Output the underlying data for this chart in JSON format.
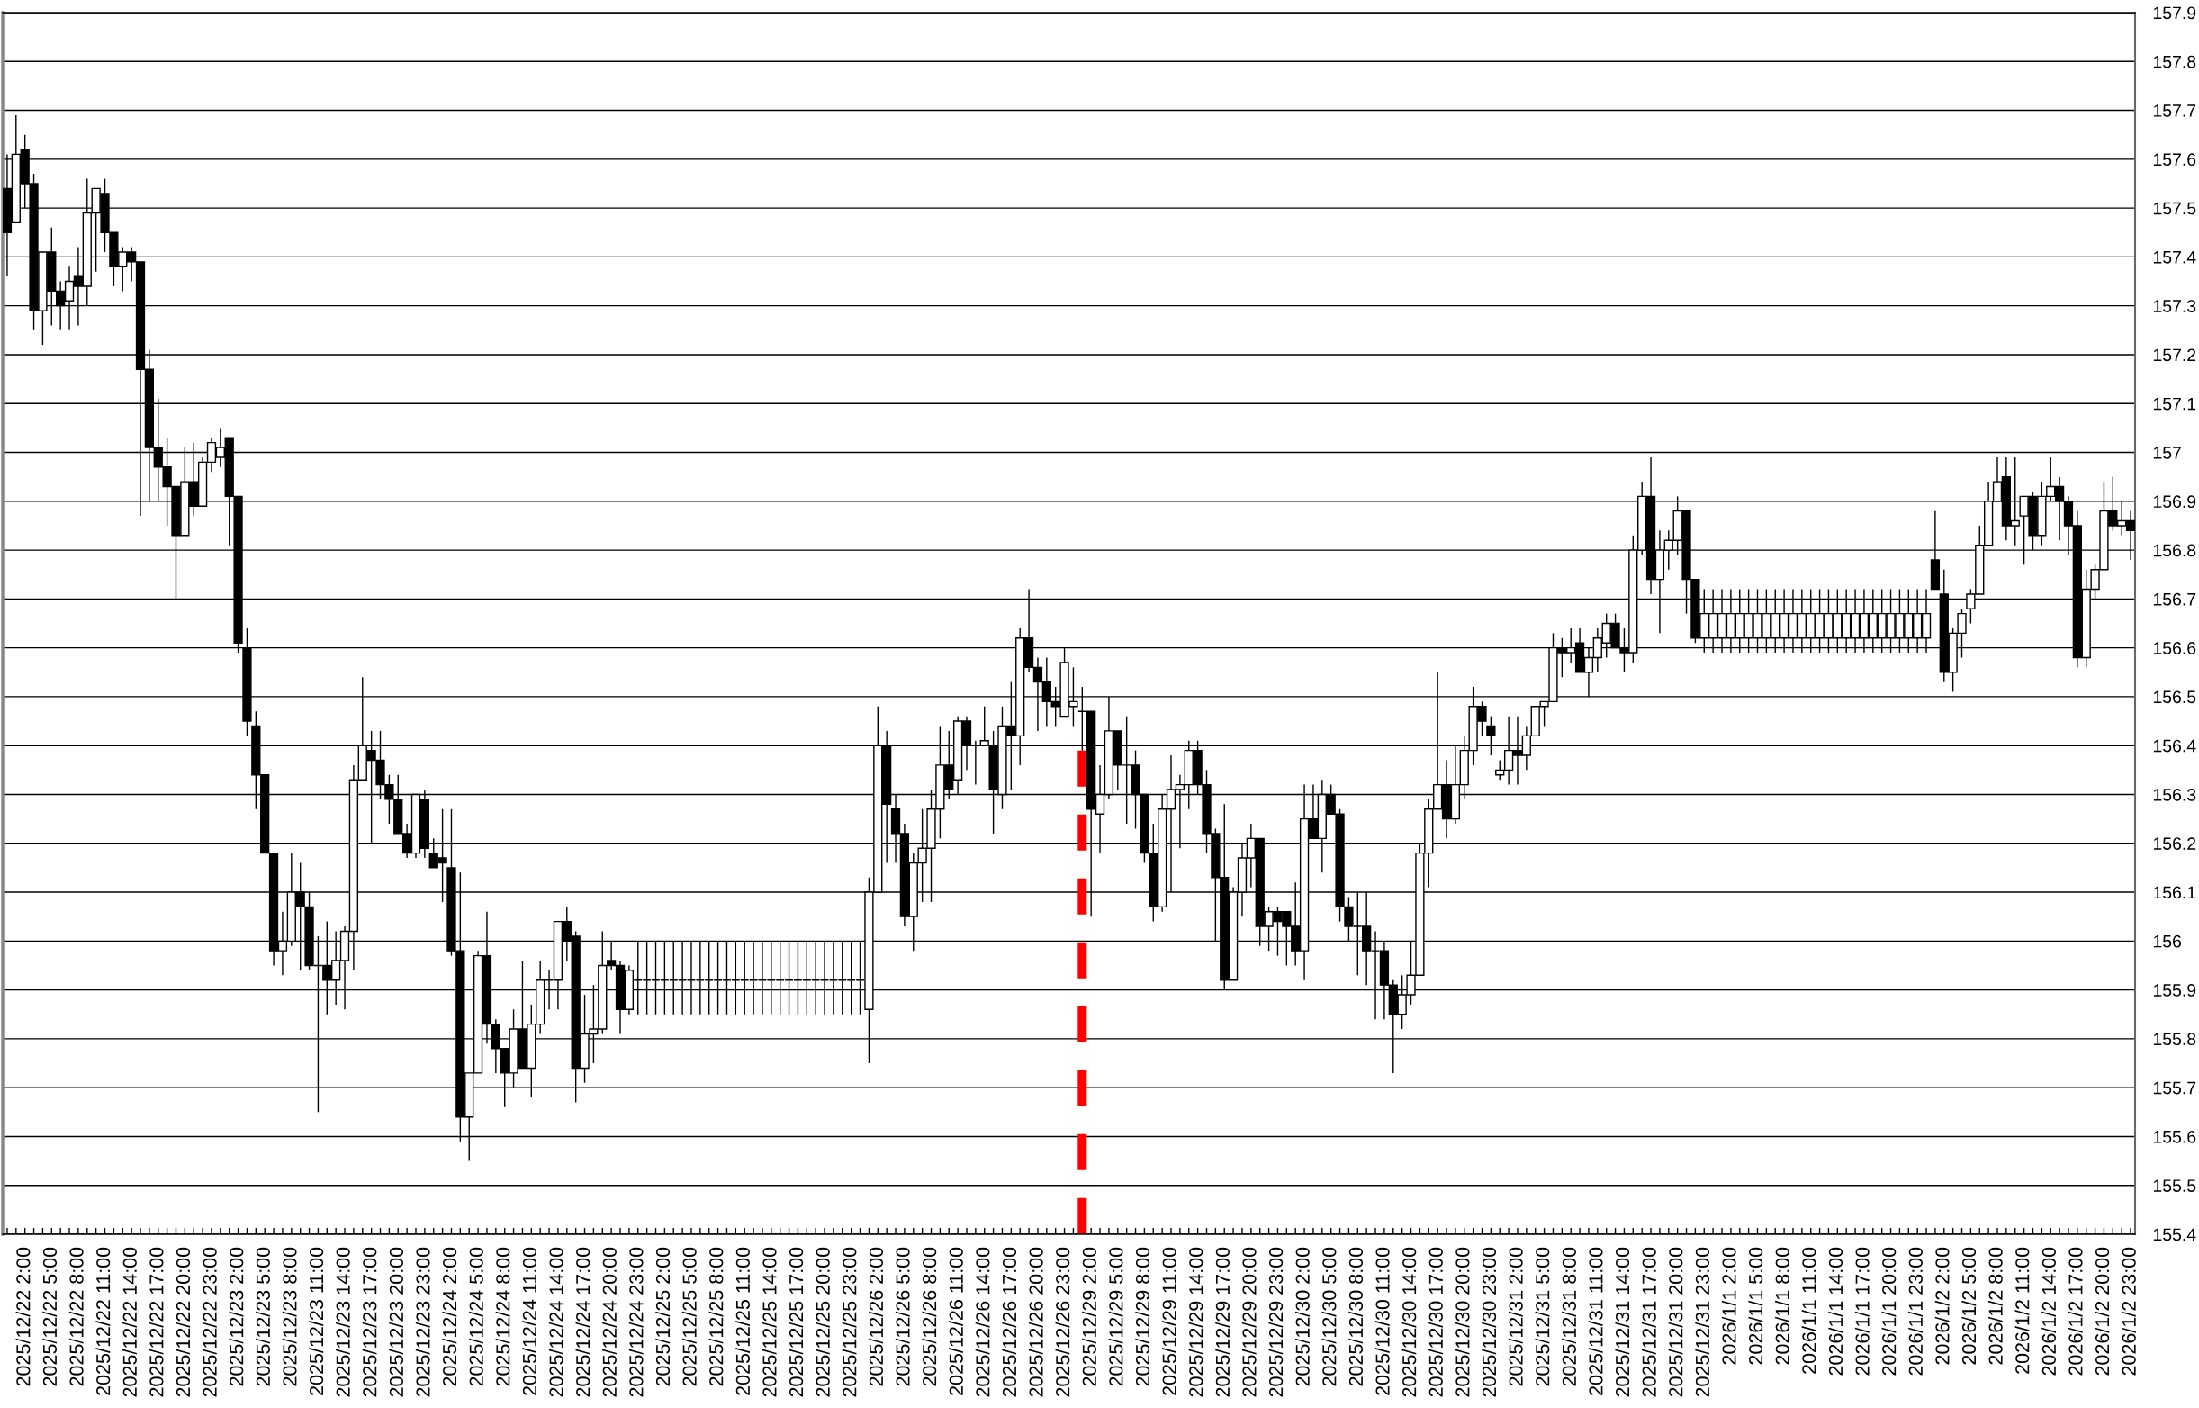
{
  "chart_data": {
    "type": "candlestick",
    "categories": [
      null,
      null,
      "2025/12/22 2:00",
      null,
      null,
      "2025/12/22 5:00",
      null,
      null,
      "2025/12/22 8:00",
      null,
      null,
      "2025/12/22 11:00",
      null,
      null,
      "2025/12/22 14:00",
      null,
      null,
      "2025/12/22 17:00",
      null,
      null,
      "2025/12/22 20:00",
      null,
      null,
      "2025/12/22 23:00",
      null,
      null,
      "2025/12/23 2:00",
      null,
      null,
      "2025/12/23 5:00",
      null,
      null,
      "2025/12/23 8:00",
      null,
      null,
      "2025/12/23 11:00",
      null,
      null,
      "2025/12/23 14:00",
      null,
      null,
      "2025/12/23 17:00",
      null,
      null,
      "2025/12/23 20:00",
      null,
      null,
      "2025/12/23 23:00",
      null,
      null,
      "2025/12/24 2:00",
      null,
      null,
      "2025/12/24 5:00",
      null,
      null,
      "2025/12/24 8:00",
      null,
      null,
      "2025/12/24 11:00",
      null,
      null,
      "2025/12/24 14:00",
      null,
      null,
      "2025/12/24 17:00",
      null,
      null,
      "2025/12/24 20:00",
      null,
      null,
      "2025/12/24 23:00",
      null,
      null,
      "2025/12/25 2:00",
      null,
      null,
      "2025/12/25 5:00",
      null,
      null,
      "2025/12/25 8:00",
      null,
      null,
      "2025/12/25 11:00",
      null,
      null,
      "2025/12/25 14:00",
      null,
      null,
      "2025/12/25 17:00",
      null,
      null,
      "2025/12/25 20:00",
      null,
      null,
      "2025/12/25 23:00",
      null,
      null,
      "2025/12/26 2:00",
      null,
      null,
      "2025/12/26 5:00",
      null,
      null,
      "2025/12/26 8:00",
      null,
      null,
      "2025/12/26 11:00",
      null,
      null,
      "2025/12/26 14:00",
      null,
      null,
      "2025/12/26 17:00",
      null,
      null,
      "2025/12/26 20:00",
      null,
      null,
      "2025/12/26 23:00",
      null,
      null,
      "2025/12/29 2:00",
      null,
      null,
      "2025/12/29 5:00",
      null,
      null,
      "2025/12/29 8:00",
      null,
      null,
      "2025/12/29 11:00",
      null,
      null,
      "2025/12/29 14:00",
      null,
      null,
      "2025/12/29 17:00",
      null,
      null,
      "2025/12/29 20:00",
      null,
      null,
      "2025/12/29 23:00",
      null,
      null,
      "2025/12/30 2:00",
      null,
      null,
      "2025/12/30 5:00",
      null,
      null,
      "2025/12/30 8:00",
      null,
      null,
      "2025/12/30 11:00",
      null,
      null,
      "2025/12/30 14:00",
      null,
      null,
      "2025/12/30 17:00",
      null,
      null,
      "2025/12/30 20:00",
      null,
      null,
      "2025/12/30 23:00",
      null,
      null,
      "2025/12/31 2:00",
      null,
      null,
      "2025/12/31 5:00",
      null,
      null,
      "2025/12/31 8:00",
      null,
      null,
      "2025/12/31 11:00",
      null,
      null,
      "2025/12/31 14:00",
      null,
      null,
      "2025/12/31 17:00",
      null,
      null,
      "2025/12/31 20:00",
      null,
      null,
      "2025/12/31 23:00",
      null,
      null,
      "2026/1/1 2:00",
      null,
      null,
      "2026/1/1 5:00",
      null,
      null,
      "2026/1/1 8:00",
      null,
      null,
      "2026/1/1 11:00",
      null,
      null,
      "2026/1/1 14:00",
      null,
      null,
      "2026/1/1 17:00",
      null,
      null,
      "2026/1/1 20:00",
      null,
      null,
      "2026/1/1 23:00",
      null,
      null,
      "2026/1/2 2:00",
      null,
      null,
      "2026/1/2 5:00",
      null,
      null,
      "2026/1/2 8:00",
      null,
      null,
      "2026/1/2 11:00",
      null,
      null,
      "2026/1/2 14:00",
      null,
      null,
      "2026/1/2 17:00",
      null,
      null,
      "2026/1/2 20:00",
      null,
      null,
      "2026/1/2 23:00"
    ],
    "ohlc": [
      [
        157.54,
        157.61,
        157.36,
        157.45
      ],
      [
        157.47,
        157.69,
        157.47,
        157.61
      ],
      [
        157.62,
        157.65,
        157.5,
        157.55
      ],
      [
        157.55,
        157.57,
        157.25,
        157.29
      ],
      [
        157.29,
        157.41,
        157.22,
        157.41
      ],
      [
        157.41,
        157.46,
        157.26,
        157.33
      ],
      [
        157.33,
        157.35,
        157.25,
        157.3
      ],
      [
        157.31,
        157.38,
        157.25,
        157.35
      ],
      [
        157.36,
        157.42,
        157.26,
        157.34
      ],
      [
        157.34,
        157.56,
        157.3,
        157.49
      ],
      [
        157.49,
        157.54,
        157.37,
        157.54
      ],
      [
        157.53,
        157.56,
        157.41,
        157.45
      ],
      [
        157.45,
        157.45,
        157.34,
        157.38
      ],
      [
        157.38,
        157.42,
        157.33,
        157.41
      ],
      [
        157.41,
        157.42,
        157.35,
        157.39
      ],
      [
        157.39,
        157.39,
        156.87,
        157.17
      ],
      [
        157.17,
        157.21,
        156.9,
        157.01
      ],
      [
        157.01,
        157.11,
        156.9,
        156.97
      ],
      [
        156.97,
        157.03,
        156.85,
        156.93
      ],
      [
        156.93,
        156.93,
        156.7,
        156.83
      ],
      [
        156.83,
        157.01,
        156.83,
        156.94
      ],
      [
        156.94,
        157.02,
        156.87,
        156.89
      ],
      [
        156.89,
        156.99,
        156.89,
        156.98
      ],
      [
        156.98,
        157.03,
        156.96,
        157.02
      ],
      [
        156.99,
        157.05,
        156.97,
        157.01
      ],
      [
        157.03,
        157.03,
        156.81,
        156.91
      ],
      [
        156.91,
        156.91,
        156.59,
        156.61
      ],
      [
        156.6,
        156.64,
        156.42,
        156.45
      ],
      [
        156.44,
        156.47,
        156.27,
        156.34
      ],
      [
        156.34,
        156.34,
        156.18,
        156.18
      ],
      [
        156.18,
        156.18,
        155.95,
        155.98
      ],
      [
        155.98,
        156.06,
        155.93,
        156.0
      ],
      [
        156.0,
        156.18,
        155.99,
        156.1
      ],
      [
        156.1,
        156.16,
        155.94,
        156.07
      ],
      [
        156.07,
        156.1,
        155.94,
        155.95
      ],
      [
        155.95,
        156.01,
        155.65,
        155.95
      ],
      [
        155.95,
        156.04,
        155.85,
        155.92
      ],
      [
        155.92,
        156.02,
        155.87,
        155.96
      ],
      [
        155.96,
        156.03,
        155.86,
        156.02
      ],
      [
        156.02,
        156.36,
        155.94,
        156.33
      ],
      [
        156.33,
        156.54,
        156.33,
        156.4
      ],
      [
        156.39,
        156.43,
        156.2,
        156.37
      ],
      [
        156.37,
        156.43,
        156.29,
        156.32
      ],
      [
        156.32,
        156.34,
        156.24,
        156.29
      ],
      [
        156.29,
        156.34,
        156.22,
        156.22
      ],
      [
        156.22,
        156.24,
        156.17,
        156.18
      ],
      [
        156.18,
        156.3,
        156.17,
        156.3
      ],
      [
        156.29,
        156.31,
        156.17,
        156.19
      ],
      [
        156.18,
        156.21,
        156.15,
        156.15
      ],
      [
        156.17,
        156.27,
        156.08,
        156.16
      ],
      [
        156.15,
        156.27,
        155.97,
        155.98
      ],
      [
        155.98,
        156.14,
        155.59,
        155.64
      ],
      [
        155.64,
        155.73,
        155.55,
        155.73
      ],
      [
        155.73,
        155.98,
        155.73,
        155.97
      ],
      [
        155.97,
        156.06,
        155.79,
        155.83
      ],
      [
        155.83,
        155.84,
        155.73,
        155.78
      ],
      [
        155.78,
        155.78,
        155.66,
        155.73
      ],
      [
        155.73,
        155.86,
        155.7,
        155.82
      ],
      [
        155.82,
        155.96,
        155.74,
        155.74
      ],
      [
        155.74,
        155.87,
        155.68,
        155.83
      ],
      [
        155.83,
        155.96,
        155.81,
        155.92
      ],
      [
        155.92,
        155.94,
        155.86,
        155.92
      ],
      [
        155.92,
        156.04,
        155.86,
        156.04
      ],
      [
        156.04,
        156.07,
        155.96,
        156.0
      ],
      [
        156.01,
        156.02,
        155.67,
        155.74
      ],
      [
        155.74,
        155.89,
        155.71,
        155.81
      ],
      [
        155.81,
        155.91,
        155.75,
        155.82
      ],
      [
        155.82,
        156.02,
        155.81,
        155.95
      ],
      [
        155.96,
        156.0,
        155.94,
        155.95
      ],
      [
        155.95,
        155.96,
        155.81,
        155.86
      ],
      [
        155.86,
        155.95,
        155.85,
        155.94
      ],
      [
        155.92,
        156.0,
        155.85,
        155.92
      ],
      [
        155.92,
        156.0,
        155.85,
        155.92
      ],
      [
        155.92,
        156.0,
        155.85,
        155.92
      ],
      [
        155.92,
        156.0,
        155.85,
        155.92
      ],
      [
        155.92,
        156.0,
        155.85,
        155.92
      ],
      [
        155.92,
        156.0,
        155.85,
        155.92
      ],
      [
        155.92,
        156.0,
        155.85,
        155.92
      ],
      [
        155.92,
        156.0,
        155.85,
        155.92
      ],
      [
        155.92,
        156.0,
        155.85,
        155.92
      ],
      [
        155.92,
        156.0,
        155.85,
        155.92
      ],
      [
        155.92,
        156.0,
        155.85,
        155.92
      ],
      [
        155.92,
        156.0,
        155.85,
        155.92
      ],
      [
        155.92,
        156.0,
        155.85,
        155.92
      ],
      [
        155.92,
        156.0,
        155.85,
        155.92
      ],
      [
        155.92,
        156.0,
        155.85,
        155.92
      ],
      [
        155.92,
        156.0,
        155.85,
        155.92
      ],
      [
        155.92,
        156.0,
        155.85,
        155.92
      ],
      [
        155.92,
        156.0,
        155.85,
        155.92
      ],
      [
        155.92,
        156.0,
        155.85,
        155.92
      ],
      [
        155.92,
        156.0,
        155.85,
        155.92
      ],
      [
        155.92,
        156.0,
        155.85,
        155.92
      ],
      [
        155.92,
        156.0,
        155.85,
        155.92
      ],
      [
        155.92,
        156.0,
        155.85,
        155.92
      ],
      [
        155.92,
        156.0,
        155.85,
        155.92
      ],
      [
        155.92,
        156.0,
        155.85,
        155.92
      ],
      [
        155.92,
        156.0,
        155.85,
        155.92
      ],
      [
        155.86,
        156.13,
        155.75,
        156.1
      ],
      [
        156.1,
        156.48,
        156.1,
        156.4
      ],
      [
        156.4,
        156.43,
        156.16,
        156.28
      ],
      [
        156.27,
        156.3,
        156.16,
        156.22
      ],
      [
        156.22,
        156.24,
        156.03,
        156.05
      ],
      [
        156.05,
        156.18,
        155.98,
        156.16
      ],
      [
        156.16,
        156.27,
        156.08,
        156.19
      ],
      [
        156.19,
        156.31,
        156.08,
        156.27
      ],
      [
        156.27,
        156.44,
        156.21,
        156.36
      ],
      [
        156.36,
        156.43,
        156.29,
        156.31
      ],
      [
        156.33,
        156.46,
        156.3,
        156.45
      ],
      [
        156.45,
        156.46,
        156.35,
        156.4
      ],
      [
        156.4,
        156.41,
        156.32,
        156.4
      ],
      [
        156.4,
        156.48,
        156.4,
        156.41
      ],
      [
        156.4,
        156.43,
        156.22,
        156.31
      ],
      [
        156.3,
        156.48,
        156.27,
        156.44
      ],
      [
        156.44,
        156.53,
        156.31,
        156.42
      ],
      [
        156.42,
        156.64,
        156.36,
        156.62
      ],
      [
        156.62,
        156.72,
        156.55,
        156.56
      ],
      [
        156.56,
        156.58,
        156.43,
        156.53
      ],
      [
        156.53,
        156.58,
        156.44,
        156.49
      ],
      [
        156.49,
        156.52,
        156.44,
        156.48
      ],
      [
        156.46,
        156.6,
        156.46,
        156.57
      ],
      [
        156.48,
        156.56,
        156.44,
        156.49
      ],
      [
        156.47,
        156.52,
        156.39,
        156.47
      ],
      [
        156.47,
        156.47,
        156.05,
        156.27
      ],
      [
        156.26,
        156.36,
        156.18,
        156.3
      ],
      [
        156.3,
        156.5,
        156.29,
        156.43
      ],
      [
        156.43,
        156.43,
        156.31,
        156.36
      ],
      [
        156.36,
        156.46,
        156.24,
        156.36
      ],
      [
        156.36,
        156.39,
        156.23,
        156.3
      ],
      [
        156.3,
        156.3,
        156.16,
        156.18
      ],
      [
        156.18,
        156.24,
        156.04,
        156.07
      ],
      [
        156.07,
        156.3,
        156.06,
        156.27
      ],
      [
        156.27,
        156.38,
        156.1,
        156.31
      ],
      [
        156.31,
        156.34,
        156.19,
        156.32
      ],
      [
        156.32,
        156.41,
        156.27,
        156.39
      ],
      [
        156.39,
        156.41,
        156.3,
        156.32
      ],
      [
        156.32,
        156.35,
        156.18,
        156.22
      ],
      [
        156.22,
        156.23,
        156.0,
        156.13
      ],
      [
        156.13,
        156.28,
        155.9,
        155.92
      ],
      [
        155.92,
        156.11,
        155.92,
        156.1
      ],
      [
        156.1,
        156.2,
        156.05,
        156.17
      ],
      [
        156.17,
        156.24,
        156.11,
        156.21
      ],
      [
        156.21,
        156.21,
        155.99,
        156.03
      ],
      [
        156.03,
        156.07,
        155.98,
        156.06
      ],
      [
        156.06,
        156.07,
        155.97,
        156.04
      ],
      [
        156.06,
        156.06,
        155.95,
        156.03
      ],
      [
        156.03,
        156.12,
        155.95,
        155.98
      ],
      [
        155.98,
        156.32,
        155.92,
        156.25
      ],
      [
        156.25,
        156.32,
        156.21,
        156.21
      ],
      [
        156.21,
        156.33,
        156.14,
        156.3
      ],
      [
        156.3,
        156.32,
        156.26,
        156.26
      ],
      [
        156.26,
        156.27,
        156.04,
        156.07
      ],
      [
        156.07,
        156.09,
        156.0,
        156.03
      ],
      [
        156.03,
        156.1,
        155.93,
        156.03
      ],
      [
        156.03,
        156.1,
        155.91,
        155.98
      ],
      [
        155.98,
        156.02,
        155.84,
        155.98
      ],
      [
        155.98,
        156.0,
        155.84,
        155.91
      ],
      [
        155.91,
        155.92,
        155.73,
        155.85
      ],
      [
        155.85,
        155.93,
        155.82,
        155.89
      ],
      [
        155.89,
        156.0,
        155.87,
        155.93
      ],
      [
        155.93,
        156.2,
        155.93,
        156.18
      ],
      [
        156.18,
        156.29,
        156.11,
        156.27
      ],
      [
        156.27,
        156.55,
        156.27,
        156.32
      ],
      [
        156.32,
        156.37,
        156.21,
        156.25
      ],
      [
        156.25,
        156.4,
        156.24,
        156.32
      ],
      [
        156.32,
        156.42,
        156.29,
        156.39
      ],
      [
        156.39,
        156.52,
        156.36,
        156.48
      ],
      [
        156.48,
        156.49,
        156.42,
        156.45
      ],
      [
        156.44,
        156.46,
        156.38,
        156.42
      ],
      [
        156.34,
        156.37,
        156.33,
        156.35
      ],
      [
        156.35,
        156.46,
        156.32,
        156.39
      ],
      [
        156.39,
        156.46,
        156.32,
        156.38
      ],
      [
        156.38,
        156.44,
        156.35,
        156.42
      ],
      [
        156.42,
        156.48,
        156.42,
        156.48
      ],
      [
        156.48,
        156.49,
        156.44,
        156.49
      ],
      [
        156.49,
        156.63,
        156.49,
        156.6
      ],
      [
        156.6,
        156.62,
        156.54,
        156.59
      ],
      [
        156.59,
        156.64,
        156.57,
        156.6
      ],
      [
        156.61,
        156.64,
        156.55,
        156.55
      ],
      [
        156.55,
        156.6,
        156.5,
        156.58
      ],
      [
        156.58,
        156.64,
        156.55,
        156.62
      ],
      [
        156.61,
        156.67,
        156.58,
        156.65
      ],
      [
        156.65,
        156.67,
        156.6,
        156.6
      ],
      [
        156.6,
        156.64,
        156.55,
        156.59
      ],
      [
        156.59,
        156.83,
        156.57,
        156.8
      ],
      [
        156.8,
        156.94,
        156.79,
        156.91
      ],
      [
        156.91,
        156.99,
        156.71,
        156.74
      ],
      [
        156.74,
        156.84,
        156.63,
        156.8
      ],
      [
        156.8,
        156.84,
        156.76,
        156.82
      ],
      [
        156.82,
        156.91,
        156.79,
        156.88
      ],
      [
        156.88,
        156.88,
        156.67,
        156.74
      ],
      [
        156.74,
        156.74,
        156.61,
        156.62
      ],
      [
        156.62,
        156.72,
        156.59,
        156.67
      ],
      [
        156.62,
        156.72,
        156.59,
        156.67
      ],
      [
        156.62,
        156.72,
        156.59,
        156.67
      ],
      [
        156.62,
        156.72,
        156.59,
        156.67
      ],
      [
        156.62,
        156.72,
        156.59,
        156.67
      ],
      [
        156.62,
        156.72,
        156.59,
        156.67
      ],
      [
        156.62,
        156.72,
        156.59,
        156.67
      ],
      [
        156.62,
        156.72,
        156.59,
        156.67
      ],
      [
        156.62,
        156.72,
        156.59,
        156.67
      ],
      [
        156.62,
        156.72,
        156.59,
        156.67
      ],
      [
        156.62,
        156.72,
        156.59,
        156.67
      ],
      [
        156.62,
        156.72,
        156.59,
        156.67
      ],
      [
        156.62,
        156.72,
        156.59,
        156.67
      ],
      [
        156.62,
        156.72,
        156.59,
        156.67
      ],
      [
        156.62,
        156.72,
        156.59,
        156.67
      ],
      [
        156.62,
        156.72,
        156.59,
        156.67
      ],
      [
        156.62,
        156.72,
        156.59,
        156.67
      ],
      [
        156.62,
        156.72,
        156.59,
        156.67
      ],
      [
        156.62,
        156.72,
        156.59,
        156.67
      ],
      [
        156.62,
        156.72,
        156.59,
        156.67
      ],
      [
        156.62,
        156.72,
        156.59,
        156.67
      ],
      [
        156.62,
        156.72,
        156.59,
        156.67
      ],
      [
        156.62,
        156.72,
        156.59,
        156.67
      ],
      [
        156.62,
        156.72,
        156.59,
        156.67
      ],
      [
        156.62,
        156.72,
        156.59,
        156.67
      ],
      [
        156.62,
        156.72,
        156.59,
        156.67
      ],
      [
        156.78,
        156.88,
        156.72,
        156.72
      ],
      [
        156.71,
        156.76,
        156.53,
        156.55
      ],
      [
        156.55,
        156.64,
        156.51,
        156.63
      ],
      [
        156.63,
        156.68,
        156.58,
        156.67
      ],
      [
        156.68,
        156.72,
        156.65,
        156.71
      ],
      [
        156.71,
        156.85,
        156.71,
        156.81
      ],
      [
        156.81,
        156.94,
        156.81,
        156.9
      ],
      [
        156.9,
        156.99,
        156.9,
        156.94
      ],
      [
        156.95,
        156.99,
        156.82,
        156.85
      ],
      [
        156.85,
        156.99,
        156.81,
        156.86
      ],
      [
        156.87,
        156.91,
        156.77,
        156.91
      ],
      [
        156.91,
        156.92,
        156.8,
        156.83
      ],
      [
        156.83,
        156.94,
        156.81,
        156.91
      ],
      [
        156.91,
        156.99,
        156.9,
        156.93
      ],
      [
        156.93,
        156.95,
        156.82,
        156.9
      ],
      [
        156.9,
        156.91,
        156.79,
        156.85
      ],
      [
        156.85,
        156.88,
        156.56,
        156.58
      ],
      [
        156.58,
        156.76,
        156.56,
        156.72
      ],
      [
        156.72,
        156.77,
        156.7,
        156.76
      ],
      [
        156.76,
        156.94,
        156.76,
        156.88
      ],
      [
        156.88,
        156.95,
        156.84,
        156.85
      ],
      [
        156.85,
        156.9,
        156.83,
        156.86
      ],
      [
        156.86,
        156.88,
        156.78,
        156.84
      ]
    ],
    "ylim": [
      155.4,
      157.9
    ],
    "yticks": [
      155.4,
      155.5,
      155.6,
      155.7,
      155.8,
      155.9,
      156,
      156.1,
      156.2,
      156.3,
      156.4,
      156.5,
      156.6,
      156.7,
      156.8,
      156.9,
      157,
      157.1,
      157.2,
      157.3,
      157.4,
      157.5,
      157.6,
      157.7,
      157.8,
      157.9
    ],
    "grid": "y"
  }
}
